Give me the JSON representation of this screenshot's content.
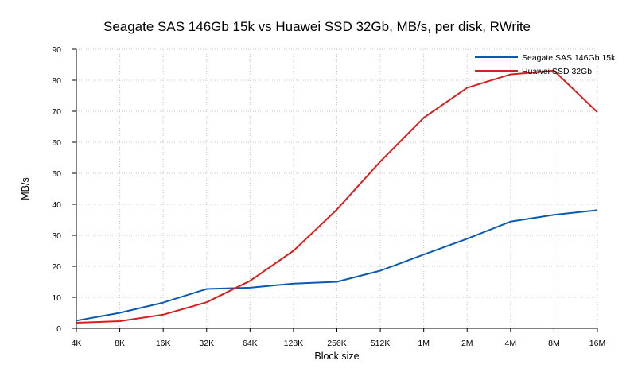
{
  "chart_data": {
    "type": "line",
    "title": "Seagate SAS 146Gb 15k vs Huawei SSD 32Gb, MB/s, per disk, RWrite",
    "xlabel": "Block size",
    "ylabel": "MB/s",
    "categories": [
      "4K",
      "8K",
      "16K",
      "32K",
      "64K",
      "128K",
      "256K",
      "512K",
      "1M",
      "2M",
      "4M",
      "8M",
      "16M"
    ],
    "ylim": [
      0,
      90
    ],
    "yticks": [
      0,
      10,
      20,
      30,
      40,
      50,
      60,
      70,
      80,
      90
    ],
    "grid": "dotted, both axes",
    "legend_position": "top-right",
    "series": [
      {
        "name": "Seagate SAS 146Gb 15k",
        "color": "#0a5bb0",
        "values": [
          2.5,
          5.0,
          8.3,
          12.7,
          13.1,
          14.4,
          15.0,
          18.6,
          23.8,
          28.9,
          34.4,
          36.6,
          38.1
        ]
      },
      {
        "name": "Huawei SSD 32Gb",
        "color": "#d91e1e",
        "values": [
          1.8,
          2.3,
          4.4,
          8.4,
          15.3,
          25.0,
          38.3,
          53.8,
          67.9,
          77.6,
          81.9,
          83.1,
          69.7
        ]
      }
    ]
  }
}
